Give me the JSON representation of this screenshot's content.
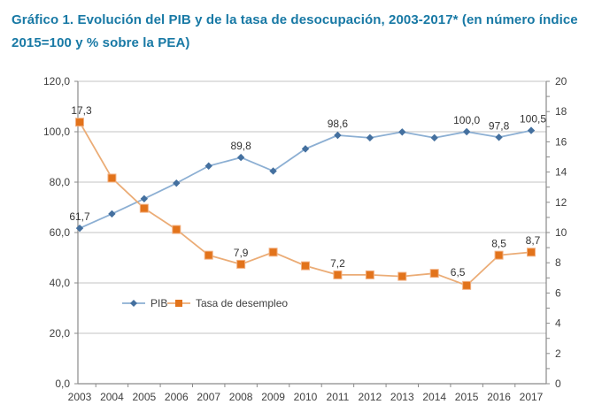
{
  "title": {
    "text": "Gráfico 1. Evolución del PIB y de la tasa de desocupación, 2003-2017* (en número índice 2015=100 y % sobre la PEA)",
    "color": "#1879A5"
  },
  "colors": {
    "pib_line": "#8CAFD3",
    "pib_marker": "#44709F",
    "desempleo_line": "#EBAC76",
    "desempleo_marker": "#E2731B",
    "gridline": "#C3C3C3",
    "axis_line": "#8A8A8A",
    "tick": "#8A8A8A",
    "axis_text": "#404040",
    "data_label_text": "#333333"
  },
  "chart_data": {
    "type": "line",
    "categories": [
      "2003",
      "2004",
      "2005",
      "2006",
      "2007",
      "2008",
      "2009",
      "2010",
      "2011",
      "2012",
      "2013",
      "2014",
      "2015",
      "2016",
      "2017"
    ],
    "series": [
      {
        "name": "PIB",
        "axis": "left",
        "marker": "diamond",
        "values": [
          61.7,
          67.4,
          73.4,
          79.6,
          86.4,
          89.8,
          84.4,
          93.2,
          98.6,
          97.6,
          99.9,
          97.6,
          100.0,
          97.8,
          100.5
        ],
        "labels": [
          {
            "i": 0,
            "t": "61,7",
            "dx": 0,
            "dy": 0
          },
          {
            "i": 5,
            "t": "89,8",
            "dx": 0,
            "dy": 0
          },
          {
            "i": 8,
            "t": "98,6",
            "dx": 0,
            "dy": 0
          },
          {
            "i": 12,
            "t": "100,0",
            "dx": 0,
            "dy": 0
          },
          {
            "i": 13,
            "t": "97,8",
            "dx": 0,
            "dy": 0
          },
          {
            "i": 14,
            "t": "100,5",
            "dx": 2,
            "dy": 0
          }
        ]
      },
      {
        "name": "Tasa de desempleo",
        "axis": "right",
        "marker": "square",
        "values": [
          17.3,
          13.6,
          11.6,
          10.2,
          8.5,
          7.9,
          8.7,
          7.8,
          7.2,
          7.2,
          7.1,
          7.3,
          6.5,
          8.5,
          8.7
        ],
        "labels": [
          {
            "i": 0,
            "t": "17,3",
            "dx": 2,
            "dy": 0
          },
          {
            "i": 5,
            "t": "7,9",
            "dx": 0,
            "dy": 0
          },
          {
            "i": 8,
            "t": "7,2",
            "dx": 0,
            "dy": 0
          },
          {
            "i": 12,
            "t": "6,5",
            "dx": -10,
            "dy": -2
          },
          {
            "i": 13,
            "t": "8,5",
            "dx": 0,
            "dy": 0
          },
          {
            "i": 14,
            "t": "8,7",
            "dx": 2,
            "dy": 0
          }
        ]
      }
    ],
    "left_axis": {
      "min": 0,
      "max": 120,
      "step": 20,
      "labels": [
        "0,0",
        "20,0",
        "40,0",
        "60,0",
        "80,0",
        "100,0",
        "120,0"
      ]
    },
    "right_axis": {
      "min": 0,
      "max": 20,
      "step": 2,
      "labels": [
        "0",
        "2",
        "4",
        "6",
        "8",
        "10",
        "12",
        "14",
        "16",
        "18",
        "20"
      ]
    },
    "legend": {
      "items": [
        {
          "label": "PIB"
        },
        {
          "label": "Tasa de desempleo"
        }
      ]
    },
    "grid": true,
    "legend_position": "inside-left-lower"
  }
}
